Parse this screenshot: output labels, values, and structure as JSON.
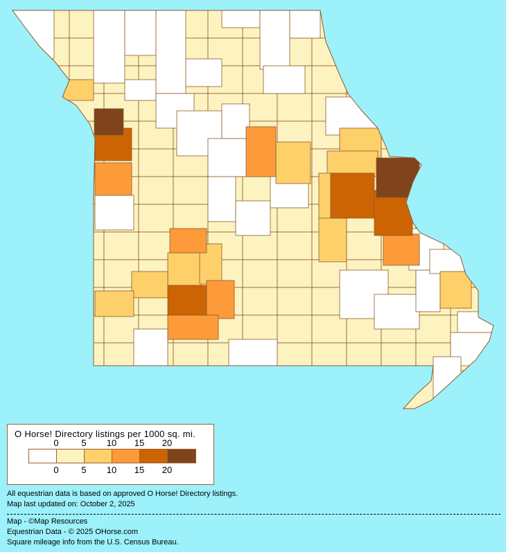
{
  "map": {
    "state": "Missouri",
    "background_color": "#9cf1fb",
    "border_color": "#8b5a2b"
  },
  "legend": {
    "title": "O Horse! Directory listings per 1000 sq. mi.",
    "top_ticks": [
      "0",
      "5",
      "10",
      "15",
      "20"
    ],
    "bottom_ticks": [
      "0",
      "5",
      "10",
      "15",
      "20"
    ],
    "classes": [
      {
        "range": "0",
        "color": "#ffffff"
      },
      {
        "range": "0-5",
        "color": "#fdf3c0"
      },
      {
        "range": "5-10",
        "color": "#fdd06a"
      },
      {
        "range": "10-15",
        "color": "#fd9b3a"
      },
      {
        "range": "15-20",
        "color": "#cc6404"
      },
      {
        "range": "20+",
        "color": "#7f441b"
      }
    ]
  },
  "notes": {
    "line1": "All equestrian data is based on approved O Horse! Directory listings.",
    "line2": "Map last updated on: October 2, 2025"
  },
  "credits": {
    "map": "Map - ©Map Resources",
    "data": "Equestrian Data - © 2025 OHorse.com",
    "census": "Square mileage info from the U.S. Census Bureau."
  }
}
